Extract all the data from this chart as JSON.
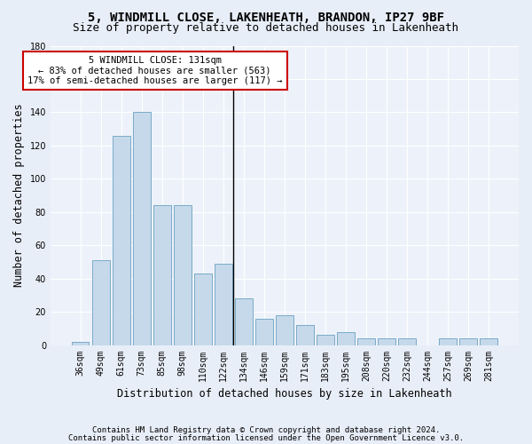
{
  "title_line1": "5, WINDMILL CLOSE, LAKENHEATH, BRANDON, IP27 9BF",
  "title_line2": "Size of property relative to detached houses in Lakenheath",
  "xlabel": "Distribution of detached houses by size in Lakenheath",
  "ylabel": "Number of detached properties",
  "footnote1": "Contains HM Land Registry data © Crown copyright and database right 2024.",
  "footnote2": "Contains public sector information licensed under the Open Government Licence v3.0.",
  "categories": [
    "36sqm",
    "49sqm",
    "61sqm",
    "73sqm",
    "85sqm",
    "98sqm",
    "110sqm",
    "122sqm",
    "134sqm",
    "146sqm",
    "159sqm",
    "171sqm",
    "183sqm",
    "195sqm",
    "208sqm",
    "220sqm",
    "232sqm",
    "244sqm",
    "257sqm",
    "269sqm",
    "281sqm"
  ],
  "values": [
    2,
    51,
    126,
    140,
    84,
    84,
    43,
    49,
    28,
    16,
    18,
    12,
    6,
    8,
    4,
    4,
    4,
    0,
    4,
    4,
    4
  ],
  "bar_color": "#c6d9ea",
  "bar_edge_color": "#7aaac8",
  "vline_x": 7.5,
  "annotation_line1": "5 WINDMILL CLOSE: 131sqm",
  "annotation_line2": "← 83% of detached houses are smaller (563)",
  "annotation_line3": "17% of semi-detached houses are larger (117) →",
  "annotation_box_color": "#ffffff",
  "annotation_box_edge_color": "#cc0000",
  "ylim": [
    0,
    180
  ],
  "yticks": [
    0,
    20,
    40,
    60,
    80,
    100,
    120,
    140,
    160,
    180
  ],
  "bg_color": "#e8eef8",
  "plot_bg_color": "#edf2fa",
  "grid_color": "#ffffff",
  "title_fontsize": 10,
  "subtitle_fontsize": 9,
  "axis_label_fontsize": 8.5,
  "tick_fontsize": 7,
  "footnote_fontsize": 6.5,
  "annotation_fontsize": 7.5
}
